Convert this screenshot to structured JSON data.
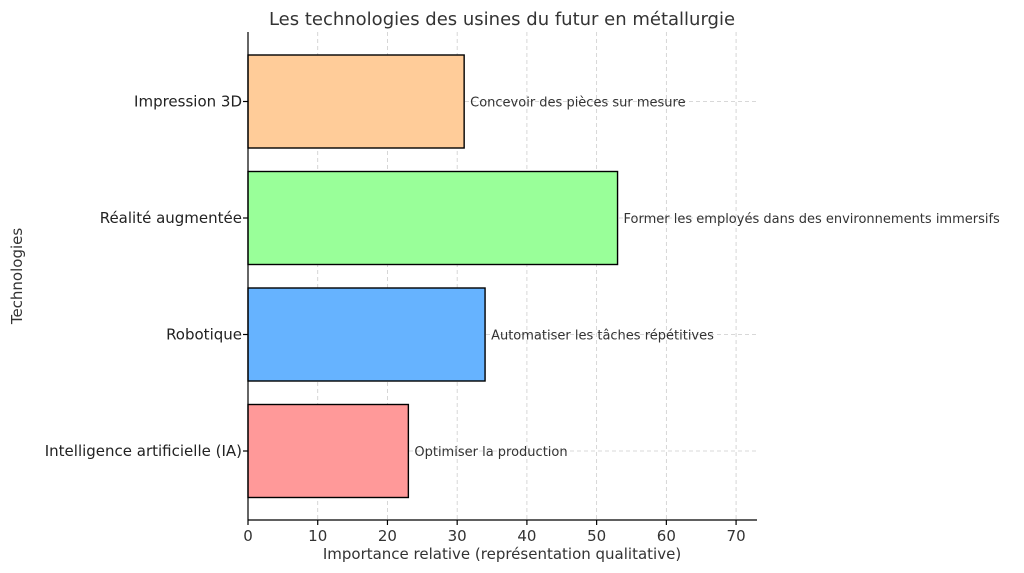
{
  "chart_data": {
    "type": "bar",
    "orientation": "horizontal",
    "title": "Les technologies des usines du futur en métallurgie",
    "xlabel": "Importance relative (représentation qualitative)",
    "ylabel": "Technologies",
    "xlim": [
      0,
      73
    ],
    "xticks": [
      0,
      10,
      20,
      30,
      40,
      50,
      60,
      70
    ],
    "grid": true,
    "categories": [
      "Intelligence artificielle (IA)",
      "Robotique",
      "Réalité augmentée",
      "Impression 3D"
    ],
    "values": [
      23,
      34,
      53,
      31
    ],
    "annotations": [
      "Optimiser la production",
      "Automatiser les tâches répétitives",
      "Former les employés dans des environnements immersifs",
      "Concevoir des pièces sur mesure"
    ],
    "colors": [
      "#ff9999",
      "#66b3ff",
      "#99ff99",
      "#ffcc99"
    ]
  }
}
